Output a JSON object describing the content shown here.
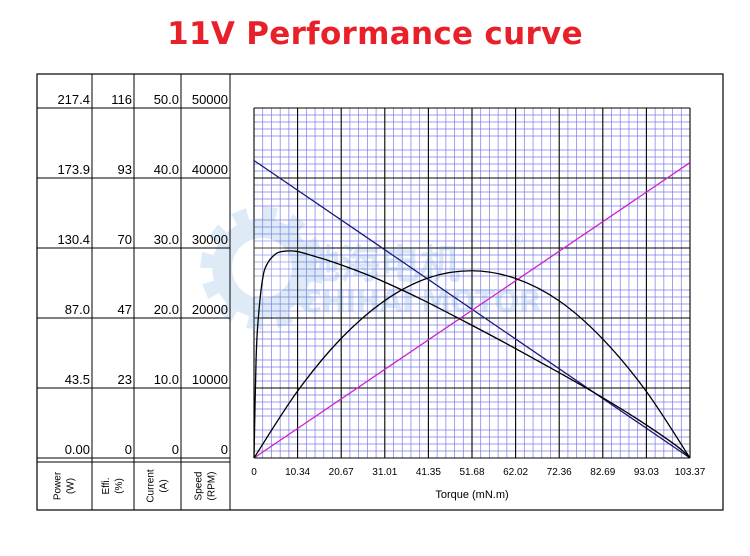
{
  "title": "11V Performance curve",
  "watermark": {
    "cn": "驰海电机",
    "en": "CHIHAI MOTOR",
    "mark": "®"
  },
  "chart_data": {
    "type": "line",
    "title": "11V Performance curve",
    "xlabel": "Torque (mN.m)",
    "x_ticks": [
      "0",
      "10.34",
      "20.67",
      "31.01",
      "41.35",
      "51.68",
      "62.02",
      "72.36",
      "82.69",
      "93.03",
      "103.37"
    ],
    "xlim": [
      0,
      103.37
    ],
    "y_axes": [
      {
        "name": "Power",
        "unit": "(W)",
        "ticks": [
          "0.00",
          "43.5",
          "87.0",
          "130.4",
          "173.9",
          "217.4"
        ],
        "lim": [
          0,
          217.4
        ]
      },
      {
        "name": "Effi.",
        "unit": "(%)",
        "ticks": [
          "0",
          "23",
          "47",
          "70",
          "93",
          "116"
        ],
        "lim": [
          0,
          116
        ]
      },
      {
        "name": "Current",
        "unit": "(A)",
        "ticks": [
          "0",
          "10.0",
          "20.0",
          "30.0",
          "40.0",
          "50.0"
        ],
        "lim": [
          0,
          50
        ]
      },
      {
        "name": "Speed",
        "unit": "(RPM)",
        "ticks": [
          "0",
          "10000",
          "20000",
          "30000",
          "40000",
          "50000"
        ],
        "lim": [
          0,
          50000
        ]
      }
    ],
    "series": [
      {
        "axis": "speed",
        "color": "#1a1a7a",
        "x": [
          0,
          103.37
        ],
        "values": [
          42500,
          0
        ]
      },
      {
        "axis": "current",
        "color": "#cc22cc",
        "x": [
          0,
          103.37
        ],
        "values": [
          0,
          42.2
        ]
      },
      {
        "axis": "power",
        "color": "#000000",
        "x": [
          0,
          10.34,
          20.67,
          31.01,
          41.35,
          51.68,
          62.02,
          72.36,
          82.69,
          93.03,
          103.37
        ],
        "values": [
          0,
          41.6,
          74.3,
          97.8,
          111.9,
          116.3,
          111.5,
          97.6,
          73.9,
          41.3,
          0
        ]
      },
      {
        "axis": "efficiency",
        "color": "#000000",
        "x": [
          0,
          0.5,
          1,
          2,
          3,
          5,
          7,
          10,
          14,
          18,
          23,
          30,
          40,
          50,
          60,
          70,
          80,
          90,
          100,
          103.37
        ],
        "values": [
          0,
          33,
          46,
          59,
          64,
          67.5,
          68.5,
          68.5,
          67,
          65.3,
          62.8,
          58.9,
          52.4,
          45.2,
          37.8,
          30.1,
          22.2,
          13.7,
          4.2,
          0
        ]
      }
    ],
    "grid": true
  }
}
